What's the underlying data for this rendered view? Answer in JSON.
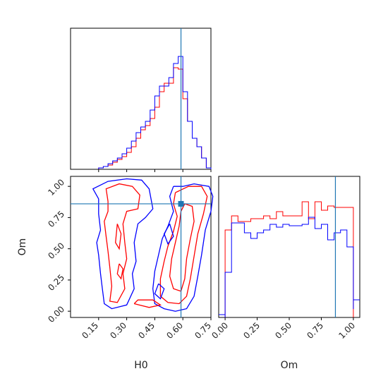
{
  "chart_data": {
    "type": "corner",
    "parameters": [
      "H0",
      "Om"
    ],
    "truths": {
      "H0": 0.59,
      "Om": 0.86
    },
    "truth_color": "#1f77b4",
    "series": [
      {
        "color": "#ff0000"
      },
      {
        "color": "#0000ff"
      }
    ],
    "panels": {
      "h0_hist": {
        "type": "histogram",
        "xlim": [
          0.0,
          0.75
        ],
        "bins": [
          0.15,
          0.175,
          0.2,
          0.225,
          0.25,
          0.275,
          0.3,
          0.325,
          0.35,
          0.375,
          0.4,
          0.425,
          0.45,
          0.475,
          0.5,
          0.525,
          0.55,
          0.575,
          0.6,
          0.625,
          0.65,
          0.675,
          0.7,
          0.725,
          0.75
        ],
        "series_values": [
          [
            0.01,
            0.02,
            0.03,
            0.05,
            0.07,
            0.09,
            0.12,
            0.16,
            0.22,
            0.28,
            0.31,
            0.36,
            0.44,
            0.55,
            0.61,
            0.61,
            0.72,
            0.71,
            0.5,
            0.34,
            0.22,
            0.16,
            0.08,
            0.01
          ],
          [
            0.01,
            0.02,
            0.04,
            0.06,
            0.08,
            0.11,
            0.15,
            0.2,
            0.26,
            0.3,
            0.34,
            0.42,
            0.52,
            0.59,
            0.59,
            0.65,
            0.75,
            0.8,
            0.55,
            0.34,
            0.22,
            0.16,
            0.08,
            0.01
          ]
        ]
      },
      "om_hist": {
        "type": "histogram",
        "xlim": [
          -0.05,
          1.05
        ],
        "bins": [
          0.0,
          0.05,
          0.1,
          0.15,
          0.2,
          0.25,
          0.3,
          0.35,
          0.4,
          0.45,
          0.5,
          0.55,
          0.6,
          0.65,
          0.7,
          0.75,
          0.8,
          0.85,
          0.9,
          0.95,
          1.0
        ],
        "series_values": [
          [
            0.62,
            0.72,
            0.68,
            0.68,
            0.7,
            0.7,
            0.72,
            0.7,
            0.75,
            0.72,
            0.72,
            0.72,
            0.82,
            0.7,
            0.82,
            0.76,
            0.79,
            0.78,
            0.78,
            0.78,
            0.0
          ],
          [
            0.32,
            0.67,
            0.67,
            0.6,
            0.56,
            0.6,
            0.62,
            0.66,
            0.64,
            0.66,
            0.65,
            0.65,
            0.66,
            0.71,
            0.63,
            0.66,
            0.55,
            0.6,
            0.62,
            0.5,
            0.06
          ]
        ],
        "xticks": [
          "0.00",
          "0.25",
          "0.50",
          "0.75",
          "1.00"
        ]
      },
      "joint": {
        "type": "contour",
        "xlim": [
          0.0,
          0.75
        ],
        "ylim": [
          -0.05,
          1.08
        ],
        "xticks": [
          "0.15",
          "0.30",
          "0.45",
          "0.60",
          "0.75"
        ],
        "yticks": [
          "0.00",
          "0.25",
          "0.50",
          "0.75",
          "1.00"
        ],
        "xlabel": "H0",
        "ylabel": "Om"
      }
    }
  }
}
